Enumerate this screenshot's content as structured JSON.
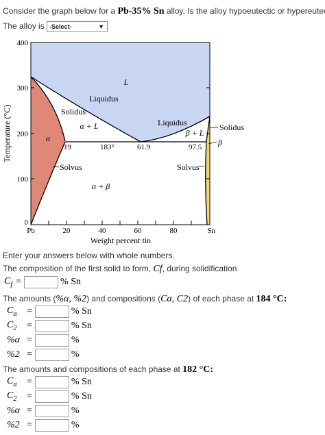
{
  "question": {
    "intro_pre": "Consider the graph below for a ",
    "alloy": "Pb-35% Sn",
    "intro_post": " alloy. Is the alloy hypoeutectic or hypereutectic?",
    "alloy_is_label": "The alloy is",
    "select_value": "-Select-"
  },
  "diagram": {
    "y_axis_label": "Temperature (°C)",
    "x_axis_label": "Weight percent tin",
    "y_ticks": [
      "0",
      "100",
      "200",
      "300",
      "400"
    ],
    "x_ticks": [
      "Pb",
      "20",
      "40",
      "60",
      "80",
      "Sn"
    ],
    "labels": {
      "L": "L",
      "liquidus_left": "Liquidus",
      "solidus_left": "Solidus",
      "alpha_L": "α + L",
      "alpha": "α",
      "liquidus_right": "Liquidus",
      "beta_L": "β + L",
      "solidus_right": "Solidus",
      "beta": "β",
      "eut_19": "19",
      "eut_183": "183°",
      "eut_61": "61.9",
      "eut_97": "97.5",
      "solvus_left": "Solvus",
      "solvus_right": "Solvus",
      "alpha_beta": "α + β"
    }
  },
  "instructions": "Enter your answers below with whole numbers.",
  "first_solid": {
    "text": "The composition of the first solid to form, ",
    "symbol": "Cf",
    "text_end": ", during solidification",
    "label": "C",
    "sub": "f",
    "unit": "% Sn"
  },
  "section184": {
    "text_a": "The amounts (",
    "text_b": ") and compositions (",
    "text_c": ") of each phase at ",
    "sym_amounts": "%α, %2",
    "sym_comps": "Cα, C2",
    "temp": "184 °C:",
    "rows": [
      {
        "label": "C",
        "sub": "α",
        "unit": "% Sn"
      },
      {
        "label": "C",
        "sub": "2",
        "unit": "% Sn"
      },
      {
        "label": "%α",
        "sub": "",
        "unit": "%"
      },
      {
        "label": "%2",
        "sub": "",
        "unit": "%"
      }
    ]
  },
  "section182": {
    "text": "The amounts and compositions of each phase at ",
    "temp": "182 °C:",
    "rows": [
      {
        "label": "C",
        "sub": "α",
        "unit": "% Sn"
      },
      {
        "label": "C",
        "sub": "2",
        "unit": "% Sn"
      },
      {
        "label": "%α",
        "sub": "",
        "unit": "%"
      },
      {
        "label": "%2",
        "sub": "",
        "unit": "%"
      }
    ]
  },
  "colors": {
    "liquid_region": "#c9d6f2",
    "alpha_region": "#e08878",
    "beta_region": "#efd873"
  }
}
